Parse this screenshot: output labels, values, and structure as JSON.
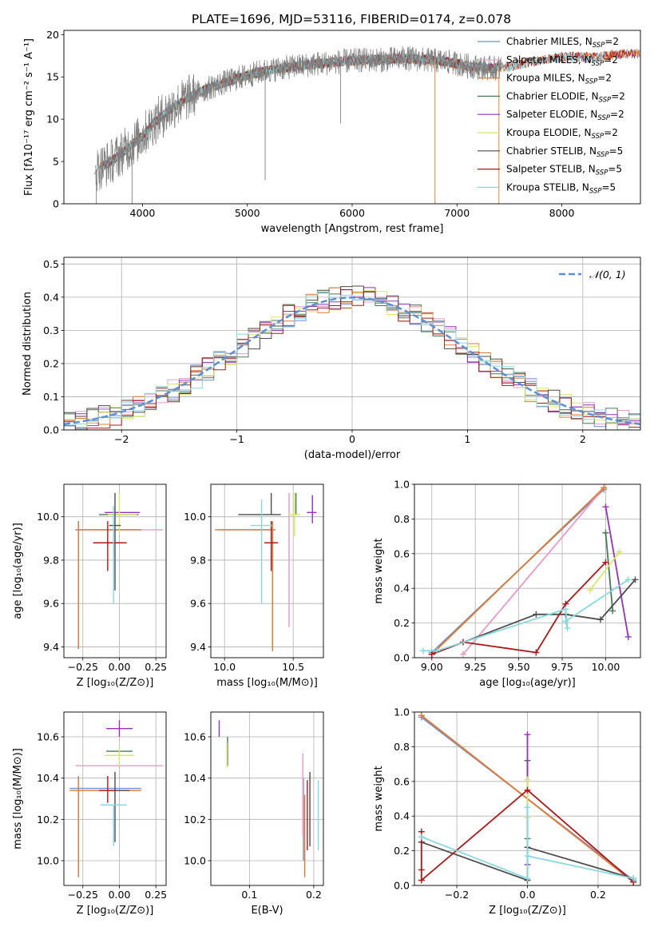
{
  "figure": {
    "title": "PLATE=1696, MJD=53116, FIBERID=0174, z=0.078",
    "colors": {
      "chabrier_miles": "#6f8fd6",
      "salpeter_miles": "#e89ac8",
      "kroupa_miles": "#e07b30",
      "chabrier_elodie": "#4a7a55",
      "salpeter_elodie": "#9432b8",
      "kroupa_elodie": "#d8e868",
      "chabrier_stelib": "#4d4d4d",
      "salpeter_stelib": "#b01818",
      "kroupa_stelib": "#88d8e0",
      "data": "#808080",
      "gaussian": "#5b8fd6"
    }
  },
  "chart_data": [
    {
      "id": "spectrum",
      "type": "line",
      "title": "PLATE=1696, MJD=53116, FIBERID=0174, z=0.078",
      "xlabel": "wavelength [Angstrom, rest frame]",
      "ylabel": "Flux [fλ10⁻¹⁷ erg cm⁻² s⁻¹ A⁻¹]",
      "xlim": [
        3250,
        8750
      ],
      "ylim": [
        0,
        20.5
      ],
      "xticks": [
        4000,
        5000,
        6000,
        7000,
        8000
      ],
      "yticks": [
        0,
        5,
        10,
        15,
        20
      ],
      "grid": false,
      "legend_position": "right",
      "legend": [
        "Chabrier MILES, N_SSP=2",
        "Salpeter MILES, N_SSP=2",
        "Kroupa MILES, N_SSP=2",
        "Chabrier ELODIE, N_SSP=2",
        "Salpeter ELODIE, N_SSP=2",
        "Kroupa ELODIE, N_SSP=2",
        "Chabrier STELIB, N_SSP=5",
        "Salpeter STELIB, N_SSP=5",
        "Kroupa STELIB, N_SSP=5"
      ],
      "continuum_x": [
        3550,
        3700,
        3800,
        3900,
        4000,
        4100,
        4300,
        4500,
        4700,
        4900,
        5100,
        5300,
        5500,
        5700,
        5900,
        6100,
        6300,
        6500,
        6700,
        6900,
        7100,
        7300,
        7500,
        7700,
        7900,
        8100,
        8300,
        8500,
        8750
      ],
      "continuum_y": [
        4.0,
        5.0,
        6.0,
        7.0,
        8.0,
        9.5,
        11.5,
        13.0,
        14.0,
        14.8,
        15.5,
        16.0,
        16.3,
        16.6,
        16.8,
        17.0,
        17.0,
        17.2,
        17.0,
        16.8,
        16.3,
        16.0,
        16.2,
        16.8,
        17.2,
        17.4,
        17.3,
        17.6,
        17.8
      ],
      "spikes_x": [
        5170,
        5890,
        6790,
        7400,
        3560,
        3900
      ],
      "spikes_y": [
        2.8,
        9.5,
        0,
        0,
        0,
        0
      ]
    },
    {
      "id": "residuals",
      "type": "line",
      "xlabel": "(data-model)/error",
      "ylabel": "Normed distribution",
      "xlim": [
        -2.5,
        2.5
      ],
      "ylim": [
        0,
        0.52
      ],
      "xticks": [
        -2,
        -1,
        0,
        1,
        2
      ],
      "yticks": [
        0.0,
        0.1,
        0.2,
        0.3,
        0.4,
        0.5
      ],
      "grid": true,
      "legend_position": "top-right",
      "legend": [
        "𝒩(0, 1)"
      ],
      "bin_width": 0.1
    },
    {
      "id": "age_vs_Z",
      "type": "scatter",
      "xlabel": "Z [log₁₀(Z/Z⊙)]",
      "ylabel": "age  [log₁₀(age/yr)]",
      "xlim": [
        -0.38,
        0.32
      ],
      "ylim": [
        9.35,
        10.15
      ],
      "xticks": [
        -0.25,
        0.0,
        0.25
      ],
      "yticks": [
        9.4,
        9.6,
        9.8,
        10.0
      ],
      "grid": true,
      "points": [
        {
          "model": "chabrier_miles",
          "x": -0.28,
          "y": 9.94,
          "xerr": [
            0.02,
            0.43
          ],
          "yerr": [
            0.55,
            0.04
          ]
        },
        {
          "model": "salpeter_miles",
          "x": 0.0,
          "y": 9.94,
          "xerr": [
            0.3,
            0.3
          ],
          "yerr": [
            0.0,
            0.0
          ]
        },
        {
          "model": "kroupa_miles",
          "x": -0.28,
          "y": 9.94,
          "xerr": [
            0.02,
            0.43
          ],
          "yerr": [
            0.55,
            0.04
          ]
        },
        {
          "model": "chabrier_elodie",
          "x": -0.04,
          "y": 10.01,
          "xerr": [
            0.1,
            0.17
          ],
          "yerr": [
            0.0,
            0.0
          ]
        },
        {
          "model": "salpeter_elodie",
          "x": 0.02,
          "y": 10.02,
          "xerr": [
            0.12,
            0.12
          ],
          "yerr": [
            0.0,
            0.0
          ]
        },
        {
          "model": "kroupa_elodie",
          "x": 0.0,
          "y": 10.01,
          "xerr": [
            0.08,
            0.12
          ],
          "yerr": [
            0.08,
            0.1
          ]
        },
        {
          "model": "chabrier_stelib",
          "x": -0.03,
          "y": 9.96,
          "xerr": [
            0.04,
            0.04
          ],
          "yerr": [
            0.3,
            0.15
          ]
        },
        {
          "model": "salpeter_stelib",
          "x": -0.08,
          "y": 9.88,
          "xerr": [
            0.1,
            0.13
          ],
          "yerr": [
            0.13,
            0.1
          ]
        },
        {
          "model": "kroupa_stelib",
          "x": -0.04,
          "y": 9.95,
          "xerr": [
            0.0,
            0.0
          ],
          "yerr": [
            0.35,
            0.1
          ]
        }
      ]
    },
    {
      "id": "age_vs_mass",
      "type": "scatter",
      "xlabel": "mass [log₁₀(M/M⊙)]",
      "xlim": [
        9.9,
        10.72
      ],
      "ylim": [
        9.35,
        10.15
      ],
      "xticks": [
        10.0,
        10.5
      ],
      "yticks": [
        9.4,
        9.6,
        9.8,
        10.0
      ],
      "grid": true,
      "points": [
        {
          "model": "chabrier_miles",
          "x": 10.35,
          "y": 9.94,
          "xerr": [
            0.4,
            0.02
          ],
          "yerr": [
            0.55,
            0.04
          ]
        },
        {
          "model": "salpeter_miles",
          "x": 10.47,
          "y": 9.99,
          "xerr": [
            0.0,
            0.0
          ],
          "yerr": [
            0.5,
            0.12
          ]
        },
        {
          "model": "kroupa_miles",
          "x": 10.35,
          "y": 9.94,
          "xerr": [
            0.42,
            0.02
          ],
          "yerr": [
            0.56,
            0.04
          ]
        },
        {
          "model": "chabrier_elodie",
          "x": 10.52,
          "y": 10.01,
          "xerr": [
            0.0,
            0.0
          ],
          "yerr": [
            0.0,
            0.1
          ]
        },
        {
          "model": "salpeter_elodie",
          "x": 10.64,
          "y": 10.02,
          "xerr": [
            0.04,
            0.03
          ],
          "yerr": [
            0.05,
            0.08
          ]
        },
        {
          "model": "kroupa_elodie",
          "x": 10.51,
          "y": 10.01,
          "xerr": [
            0.04,
            0.04
          ],
          "yerr": [
            0.1,
            0.1
          ]
        },
        {
          "model": "chabrier_stelib",
          "x": 10.34,
          "y": 10.01,
          "xerr": [
            0.24,
            0.07
          ],
          "yerr": [
            0.0,
            0.1
          ]
        },
        {
          "model": "salpeter_stelib",
          "x": 10.34,
          "y": 9.88,
          "xerr": [
            0.05,
            0.05
          ],
          "yerr": [
            0.13,
            0.1
          ]
        },
        {
          "model": "kroupa_stelib",
          "x": 10.27,
          "y": 9.96,
          "xerr": [
            0.08,
            0.08
          ],
          "yerr": [
            0.36,
            0.12
          ]
        }
      ]
    },
    {
      "id": "weight_vs_age",
      "type": "line",
      "xlabel": "age  [log₁₀(age/yr)]",
      "ylabel": "mass weight",
      "xlim": [
        8.9,
        10.2
      ],
      "ylim": [
        0.0,
        1.0
      ],
      "xticks": [
        9.0,
        9.25,
        9.5,
        9.75,
        10.0
      ],
      "yticks": [
        0.0,
        0.2,
        0.4,
        0.6,
        0.8,
        1.0
      ],
      "grid": true,
      "series": [
        {
          "model": "chabrier_miles",
          "x": [
            9.0,
            9.99
          ],
          "y": [
            0.03,
            0.97
          ]
        },
        {
          "model": "salpeter_miles",
          "x": [
            9.18,
            9.99
          ],
          "y": [
            0.02,
            0.98
          ]
        },
        {
          "model": "kroupa_miles",
          "x": [
            9.0,
            9.99
          ],
          "y": [
            0.02,
            0.98
          ]
        },
        {
          "model": "chabrier_elodie",
          "x": [
            10.0,
            10.04
          ],
          "y": [
            0.72,
            0.27
          ]
        },
        {
          "model": "salpeter_elodie",
          "x": [
            10.0,
            10.13
          ],
          "y": [
            0.87,
            0.12
          ]
        },
        {
          "model": "kroupa_elodie",
          "x": [
            9.91,
            10.08
          ],
          "y": [
            0.39,
            0.61
          ]
        },
        {
          "model": "chabrier_stelib",
          "x": [
            9.0,
            9.6,
            9.77,
            9.97,
            10.17
          ],
          "y": [
            0.02,
            0.25,
            0.25,
            0.22,
            0.45
          ]
        },
        {
          "model": "salpeter_stelib",
          "x": [
            9.0,
            9.18,
            9.6,
            9.77,
            10.0
          ],
          "y": [
            0.02,
            0.09,
            0.03,
            0.31,
            0.55
          ]
        },
        {
          "model": "kroupa_stelib",
          "x": [
            8.95,
            9.03,
            9.77,
            9.78,
            9.77,
            10.13
          ],
          "y": [
            0.04,
            0.04,
            0.28,
            0.17,
            0.21,
            0.45
          ]
        }
      ]
    },
    {
      "id": "mass_vs_Z",
      "type": "scatter",
      "xlabel": "Z [log₁₀(Z/Z⊙)]",
      "ylabel": "mass [log₁₀(M/M⊙)]",
      "xlim": [
        -0.38,
        0.32
      ],
      "ylim": [
        9.88,
        10.72
      ],
      "xticks": [
        -0.25,
        0.0,
        0.25
      ],
      "yticks": [
        10.0,
        10.2,
        10.4,
        10.6
      ],
      "grid": true,
      "points": [
        {
          "model": "chabrier_miles",
          "x": -0.28,
          "y": 10.35,
          "xerr": [
            0.06,
            0.43
          ],
          "yerr": [
            0.43,
            0.06
          ]
        },
        {
          "model": "salpeter_miles",
          "x": 0.0,
          "y": 10.46,
          "xerr": [
            0.3,
            0.3
          ],
          "yerr": [
            0.0,
            0.0
          ]
        },
        {
          "model": "kroupa_miles",
          "x": -0.28,
          "y": 10.34,
          "xerr": [
            0.06,
            0.43
          ],
          "yerr": [
            0.42,
            0.06
          ]
        },
        {
          "model": "chabrier_elodie",
          "x": 0.0,
          "y": 10.53,
          "xerr": [
            0.09,
            0.09
          ],
          "yerr": [
            0.0,
            0.0
          ]
        },
        {
          "model": "salpeter_elodie",
          "x": 0.0,
          "y": 10.64,
          "xerr": [
            0.09,
            0.09
          ],
          "yerr": [
            0.04,
            0.04
          ]
        },
        {
          "model": "kroupa_elodie",
          "x": 0.0,
          "y": 10.51,
          "xerr": [
            0.1,
            0.1
          ],
          "yerr": [
            0.05,
            0.04
          ]
        },
        {
          "model": "chabrier_stelib",
          "x": -0.03,
          "y": 10.34,
          "xerr": [
            0.1,
            0.1
          ],
          "yerr": [
            0.25,
            0.09
          ]
        },
        {
          "model": "salpeter_stelib",
          "x": -0.08,
          "y": 10.34,
          "xerr": [
            0.06,
            0.06
          ],
          "yerr": [
            0.06,
            0.07
          ]
        },
        {
          "model": "kroupa_stelib",
          "x": -0.04,
          "y": 10.27,
          "xerr": [
            0.09,
            0.09
          ],
          "yerr": [
            0.2,
            0.0
          ]
        }
      ]
    },
    {
      "id": "mass_vs_ebv",
      "type": "scatter",
      "xlabel": "E(B-V)",
      "xlim": [
        0.04,
        0.215
      ],
      "ylim": [
        9.88,
        10.72
      ],
      "xticks": [
        0.1,
        0.2
      ],
      "yticks": [
        10.0,
        10.2,
        10.4,
        10.6
      ],
      "grid": true,
      "points": [
        {
          "model": "chabrier_miles",
          "x": 0.184,
          "y": 10.2,
          "xerr": [
            0.0,
            0.0
          ],
          "yerr": [
            0.2,
            0.2
          ]
        },
        {
          "model": "salpeter_miles",
          "x": 0.183,
          "y": 10.32,
          "xerr": [
            0.0,
            0.0
          ],
          "yerr": [
            0.2,
            0.2
          ]
        },
        {
          "model": "kroupa_miles",
          "x": 0.186,
          "y": 10.12,
          "xerr": [
            0.0,
            0.0
          ],
          "yerr": [
            0.2,
            0.2
          ]
        },
        {
          "model": "chabrier_elodie",
          "x": 0.066,
          "y": 10.53,
          "xerr": [
            0.0,
            0.0
          ],
          "yerr": [
            0.07,
            0.07
          ]
        },
        {
          "model": "salpeter_elodie",
          "x": 0.053,
          "y": 10.64,
          "xerr": [
            0.0,
            0.0
          ],
          "yerr": [
            0.04,
            0.04
          ]
        },
        {
          "model": "kroupa_elodie",
          "x": 0.065,
          "y": 10.51,
          "xerr": [
            0.0,
            0.0
          ],
          "yerr": [
            0.06,
            0.06
          ]
        },
        {
          "model": "chabrier_stelib",
          "x": 0.194,
          "y": 10.25,
          "xerr": [
            0.0,
            0.0
          ],
          "yerr": [
            0.18,
            0.18
          ]
        },
        {
          "model": "salpeter_stelib",
          "x": 0.19,
          "y": 10.22,
          "xerr": [
            0.0,
            0.0
          ],
          "yerr": [
            0.17,
            0.17
          ]
        },
        {
          "model": "kroupa_stelib",
          "x": 0.207,
          "y": 10.22,
          "xerr": [
            0.0,
            0.0
          ],
          "yerr": [
            0.17,
            0.17
          ]
        }
      ]
    },
    {
      "id": "weight_vs_Z",
      "type": "line",
      "xlabel": "Z [log₁₀(Z/Z⊙)]",
      "ylabel": "mass weight",
      "xlim": [
        -0.32,
        0.32
      ],
      "ylim": [
        0.0,
        1.0
      ],
      "xticks": [
        -0.2,
        0.0,
        0.2
      ],
      "yticks": [
        0.0,
        0.2,
        0.4,
        0.6,
        0.8,
        1.0
      ],
      "grid": true,
      "series": [
        {
          "model": "chabrier_miles",
          "x": [
            -0.3,
            0.3
          ],
          "y": [
            0.97,
            0.03
          ]
        },
        {
          "model": "salpeter_miles",
          "x": [
            -0.3,
            0.3
          ],
          "y": [
            0.98,
            0.02
          ]
        },
        {
          "model": "kroupa_miles",
          "x": [
            -0.3,
            0.3
          ],
          "y": [
            0.98,
            0.02
          ]
        },
        {
          "model": "chabrier_elodie",
          "x": [
            0.0,
            0.0
          ],
          "y": [
            0.27,
            0.72
          ]
        },
        {
          "model": "salpeter_elodie",
          "x": [
            0.0,
            0.0
          ],
          "y": [
            0.12,
            0.87
          ]
        },
        {
          "model": "kroupa_elodie",
          "x": [
            0.0,
            0.0
          ],
          "y": [
            0.39,
            0.61
          ]
        },
        {
          "model": "chabrier_stelib",
          "x": [
            -0.3,
            0.0,
            0.0,
            0.3
          ],
          "y": [
            0.25,
            0.03,
            0.22,
            0.04
          ]
        },
        {
          "model": "salpeter_stelib",
          "x": [
            -0.3,
            -0.3,
            -0.3,
            0.0,
            0.3
          ],
          "y": [
            0.31,
            0.09,
            0.03,
            0.55,
            0.02
          ]
        },
        {
          "model": "kroupa_stelib",
          "x": [
            -0.3,
            0.0,
            0.0,
            0.0,
            0.3
          ],
          "y": [
            0.28,
            0.04,
            0.45,
            0.17,
            0.04
          ]
        }
      ]
    }
  ]
}
